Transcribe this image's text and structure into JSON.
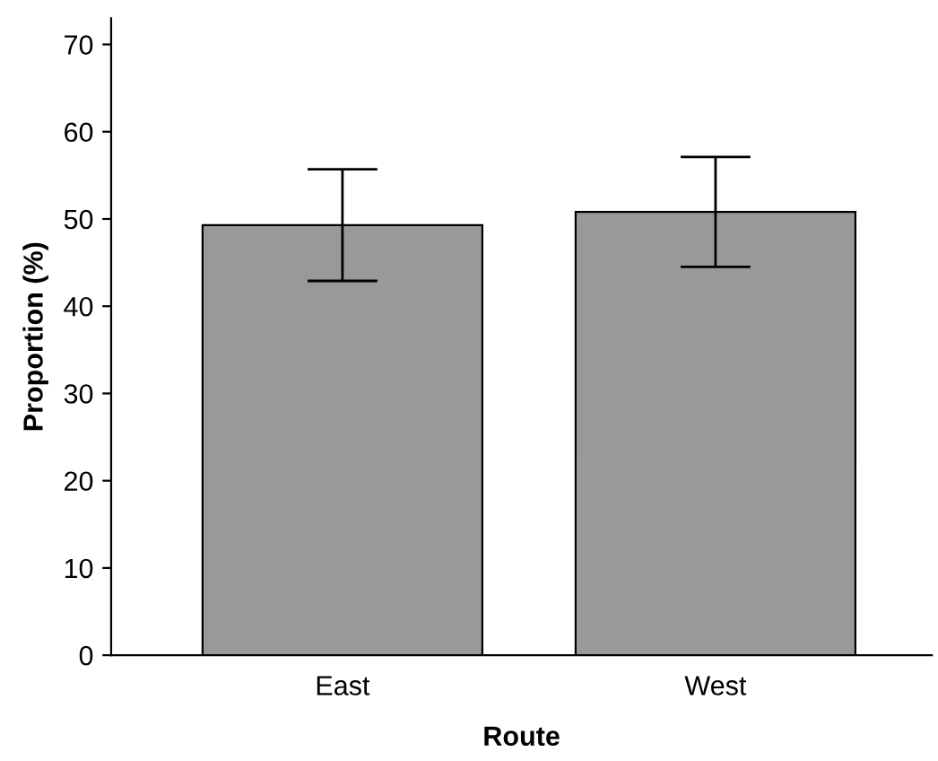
{
  "chart_data": {
    "type": "bar",
    "xlabel": "Route",
    "ylabel": "Proportion (%)",
    "categories": [
      "East",
      "West"
    ],
    "values": [
      49.3,
      50.8
    ],
    "errors": [
      6.4,
      6.3
    ],
    "color": "#999999",
    "ylim": [
      0,
      73
    ],
    "yticks": [
      0,
      10,
      20,
      30,
      40,
      50,
      60,
      70
    ],
    "grid": false
  }
}
